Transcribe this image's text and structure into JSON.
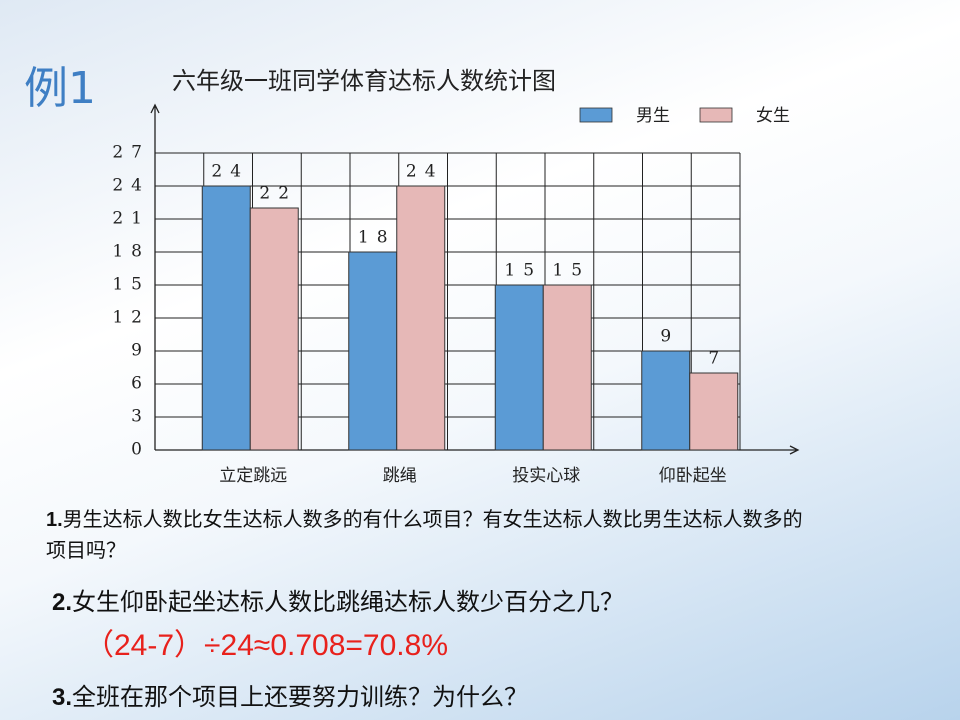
{
  "slide": {
    "example_label": "例1",
    "questions": [
      {
        "number": "1.",
        "text": "男生达标人数比女生达标人数多的有什么项目？有女生达标人数比男生达标人数多的项目吗？"
      },
      {
        "number": "2.",
        "text": "女生仰卧起坐达标人数比跳绳达标人数少百分之几？"
      },
      {
        "number": "3.",
        "text": "全班在那个项目上还要努力训练？为什么？"
      }
    ],
    "answer": "（24-7）÷24≈0.708=70.8%"
  },
  "chart_data": {
    "type": "bar",
    "title": "六年级一班同学体育达标人数统计图",
    "categories": [
      "立定跳远",
      "跳绳",
      "投实心球",
      "仰卧起坐"
    ],
    "series": [
      {
        "name": "男生",
        "color": "#5b9bd5",
        "values": [
          24,
          18,
          15,
          9
        ]
      },
      {
        "name": "女生",
        "color": "#e6b8b7",
        "values": [
          22,
          24,
          15,
          7
        ]
      }
    ],
    "ylim": [
      0,
      27
    ],
    "yticks": [
      0,
      3,
      6,
      9,
      12,
      15,
      18,
      21,
      24,
      27
    ],
    "grid": true,
    "legend": "top-right"
  }
}
